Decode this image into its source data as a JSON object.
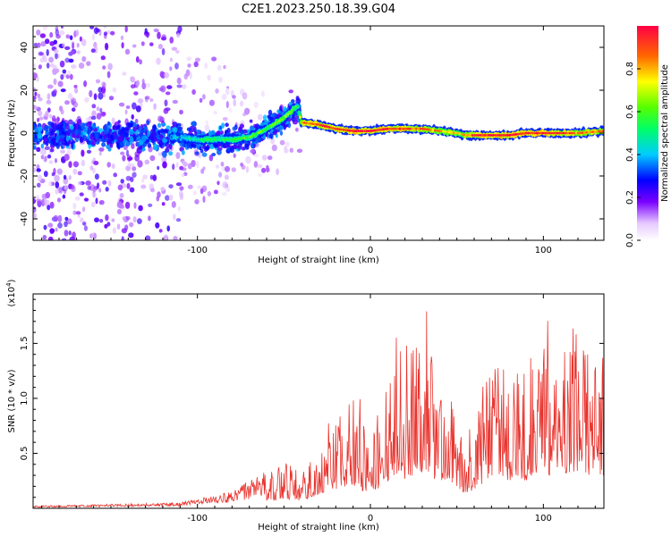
{
  "title": "C2E1.2023.250.18.39.G04",
  "chart_data": [
    {
      "type": "heatmap",
      "xlabel": "Height of straight line (km)",
      "ylabel": "Frequency (Hz)",
      "xlim": [
        -195,
        135
      ],
      "ylim": [
        -50,
        50
      ],
      "x_ticks": [
        -100,
        0,
        100
      ],
      "x_tick_labels": [
        "-100",
        "0",
        "100"
      ],
      "y_ticks": [
        -40,
        -20,
        0,
        20,
        40
      ],
      "y_tick_labels": [
        "-40",
        "-20",
        "0",
        "20",
        "40"
      ],
      "colorbar": {
        "label": "Normalized spectral amplitude",
        "range": [
          0,
          1
        ],
        "ticks": [
          0.0,
          0.2,
          0.4,
          0.6,
          0.8
        ],
        "tick_labels": [
          "0.0",
          "0.2",
          "0.4",
          "0.6",
          "0.8"
        ]
      },
      "ridge": {
        "x": [
          -195,
          -150,
          -110,
          -100,
          -90,
          -80,
          -70,
          -60,
          -50,
          -45,
          -42,
          -40,
          -30,
          -20,
          -10,
          0,
          10,
          20,
          30,
          40,
          50,
          55,
          60,
          70,
          80,
          90,
          100,
          110,
          120,
          135
        ],
        "y": [
          -1,
          -1,
          -2,
          -3,
          -3,
          -3,
          -2,
          2,
          7,
          11,
          13,
          5,
          4,
          2,
          1,
          1,
          2,
          2,
          2,
          1,
          0,
          -1,
          -1,
          -1,
          -1,
          0,
          0,
          0,
          0,
          1
        ],
        "amplitude": [
          0.35,
          0.35,
          0.4,
          0.5,
          0.55,
          0.55,
          0.6,
          0.6,
          0.65,
          0.6,
          0.5,
          0.85,
          0.9,
          0.95,
          0.95,
          0.95,
          0.95,
          0.9,
          0.85,
          0.8,
          0.75,
          0.8,
          0.9,
          0.95,
          0.95,
          0.95,
          0.95,
          0.9,
          0.85,
          0.85
        ]
      }
    },
    {
      "type": "line",
      "xlabel": "Height of straight line (km)",
      "ylabel": "SNR (10 * v/v)",
      "multiplier_label": "(x10",
      "multiplier_exp": "4",
      "multiplier_close": ")",
      "xlim": [
        -195,
        135
      ],
      "ylim": [
        0,
        19500
      ],
      "x_ticks": [
        -100,
        0,
        100
      ],
      "x_tick_labels": [
        "-100",
        "0",
        "100"
      ],
      "y_ticks": [
        5000,
        10000,
        15000
      ],
      "y_tick_labels": [
        "0.5",
        "1.0",
        "1.5"
      ],
      "color": "#e8342e",
      "envelope": {
        "x": [
          -195,
          -150,
          -110,
          -85,
          -75,
          -60,
          -50,
          -40,
          -35,
          -25,
          -15,
          -10,
          -5,
          0,
          5,
          10,
          15,
          20,
          30,
          35,
          40,
          45,
          50,
          55,
          60,
          65,
          70,
          75,
          80,
          85,
          90,
          95,
          100,
          105,
          110,
          115,
          120,
          125,
          130,
          135
        ],
        "y": [
          150,
          250,
          350,
          900,
          1400,
          2300,
          3500,
          2800,
          3800,
          6200,
          7800,
          8500,
          6500,
          5200,
          7400,
          9800,
          12500,
          10500,
          13000,
          11500,
          9500,
          10500,
          8000,
          5000,
          7000,
          9000,
          11500,
          12500,
          10000,
          11500,
          10000,
          12000,
          13500,
          11500,
          12500,
          13000,
          13500,
          12000,
          11800,
          12000
        ]
      }
    }
  ]
}
